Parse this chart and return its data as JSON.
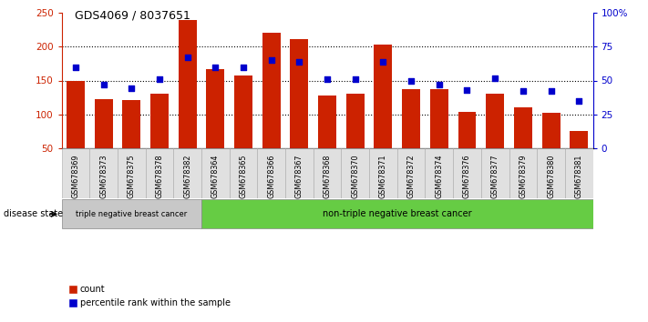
{
  "title": "GDS4069 / 8037651",
  "samples": [
    "GSM678369",
    "GSM678373",
    "GSM678375",
    "GSM678378",
    "GSM678382",
    "GSM678364",
    "GSM678365",
    "GSM678366",
    "GSM678367",
    "GSM678368",
    "GSM678370",
    "GSM678371",
    "GSM678372",
    "GSM678374",
    "GSM678376",
    "GSM678377",
    "GSM678379",
    "GSM678380",
    "GSM678381"
  ],
  "counts": [
    150,
    122,
    121,
    130,
    240,
    167,
    158,
    220,
    211,
    128,
    130,
    203,
    137,
    137,
    103,
    130,
    110,
    102,
    75
  ],
  "percentiles": [
    60,
    47,
    44,
    51,
    67,
    60,
    60,
    65,
    64,
    51,
    51,
    64,
    50,
    47,
    43,
    52,
    42,
    42,
    35
  ],
  "triple_neg_count": 5,
  "group1_label": "triple negative breast cancer",
  "group2_label": "non-triple negative breast cancer",
  "bar_color": "#cc2200",
  "dot_color": "#0000cc",
  "left_axis_color": "#cc2200",
  "right_axis_color": "#0000cc",
  "ylim_left": [
    50,
    250
  ],
  "ylim_right": [
    0,
    100
  ],
  "left_ticks": [
    50,
    100,
    150,
    200,
    250
  ],
  "right_ticks": [
    0,
    25,
    50,
    75,
    100
  ],
  "right_tick_labels": [
    "0",
    "25",
    "50",
    "75",
    "100%"
  ],
  "hlines": [
    100,
    150,
    200
  ],
  "group1_bg": "#c8c8c8",
  "group2_bg": "#66cc44",
  "cell_bg": "#e0e0e0",
  "cell_edge": "#aaaaaa"
}
